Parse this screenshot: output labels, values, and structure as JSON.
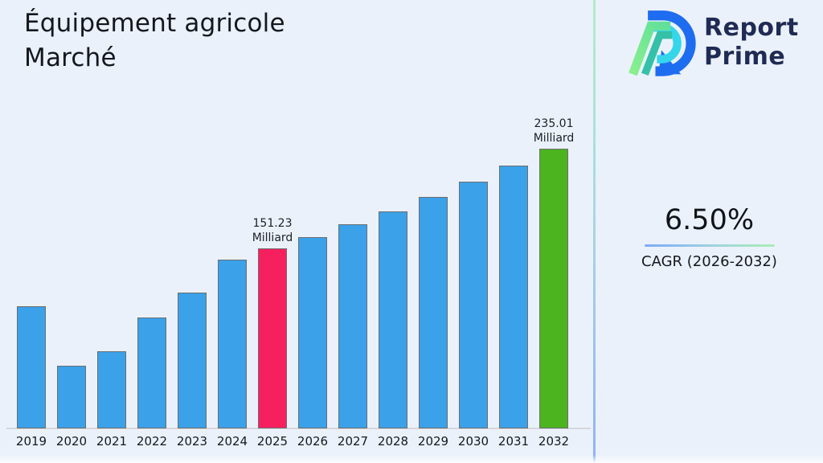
{
  "title": {
    "line1": "Équipement agricole",
    "line2": "Marché"
  },
  "logo": {
    "line1": "Report",
    "line2": "Prime"
  },
  "cagr": {
    "value": "6.50%",
    "label": "CAGR (2026-2032)"
  },
  "chart_data": {
    "type": "bar",
    "title": "Équipement agricole Marché",
    "xlabel": "",
    "ylabel": "",
    "unit": "Milliard",
    "ylim": [
      0,
      250
    ],
    "grid": false,
    "legend": "none",
    "categories": [
      "2019",
      "2020",
      "2021",
      "2022",
      "2023",
      "2024",
      "2025",
      "2026",
      "2027",
      "2028",
      "2029",
      "2030",
      "2031",
      "2032"
    ],
    "values": [
      103,
      53,
      65,
      93,
      114,
      142,
      151.23,
      161.06,
      171.53,
      182.68,
      194.55,
      207.2,
      220.67,
      235.01
    ],
    "bars": [
      {
        "year": "2019",
        "value": 103,
        "color": "default"
      },
      {
        "year": "2020",
        "value": 53,
        "color": "default"
      },
      {
        "year": "2021",
        "value": 65,
        "color": "default"
      },
      {
        "year": "2022",
        "value": 93,
        "color": "default"
      },
      {
        "year": "2023",
        "value": 114,
        "color": "default"
      },
      {
        "year": "2024",
        "value": 142,
        "color": "default"
      },
      {
        "year": "2025",
        "value": 151.23,
        "color": "pink",
        "annotation": [
          "151.23",
          "Milliard"
        ]
      },
      {
        "year": "2026",
        "value": 161.06,
        "color": "default"
      },
      {
        "year": "2027",
        "value": 171.53,
        "color": "default"
      },
      {
        "year": "2028",
        "value": 182.68,
        "color": "default"
      },
      {
        "year": "2029",
        "value": 194.55,
        "color": "default"
      },
      {
        "year": "2030",
        "value": 207.2,
        "color": "default"
      },
      {
        "year": "2031",
        "value": 220.67,
        "color": "default"
      },
      {
        "year": "2032",
        "value": 235.01,
        "color": "green",
        "annotation": [
          "235.01",
          "Milliard"
        ]
      }
    ],
    "colors": {
      "default": "#3BA1E8",
      "pink": "#F7205F",
      "green": "#4CB41E"
    },
    "annotated_values": [
      {
        "category": "2025",
        "text": "151.23 Milliard"
      },
      {
        "category": "2032",
        "text": "235.01 Milliard"
      }
    ]
  },
  "theme": {
    "background": "#ebf1fb",
    "title_color": "#14181d",
    "logo_text_color": "#1f2b54",
    "logo_blue": "#1e6cf0",
    "logo_cyan": "#35d6ea",
    "logo_green_light": "#86ec8e",
    "logo_teal": "#35c0a8",
    "divider_gradient_top": "#b0eec7",
    "divider_gradient_bottom": "#8fb1fb",
    "axis_color": "#d4d7dc"
  }
}
